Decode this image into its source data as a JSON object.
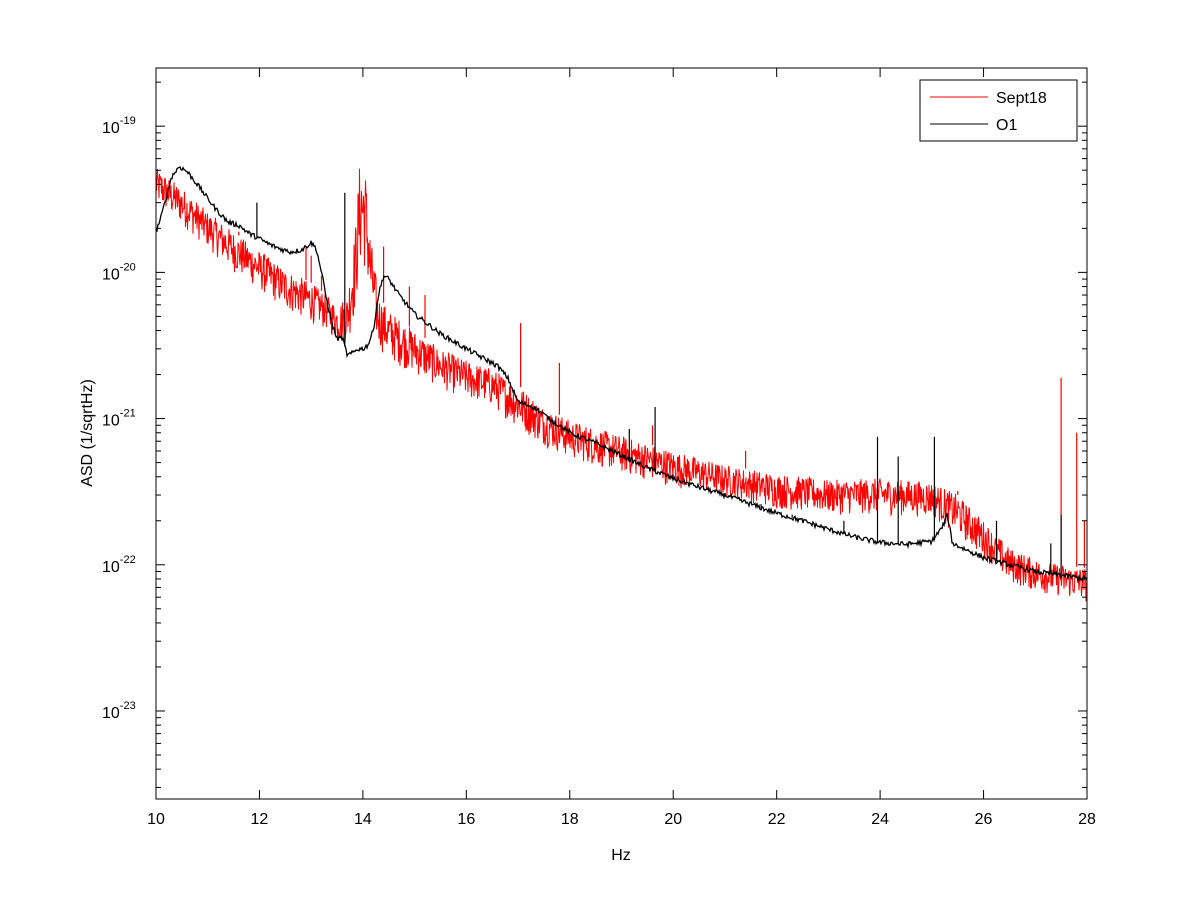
{
  "chart_data": {
    "type": "line",
    "title": "",
    "xlabel": "Hz",
    "ylabel": "ASD (1/sqrtHz)",
    "xlim": [
      10,
      28
    ],
    "ylim": [
      2.5e-24,
      2.5e-19
    ],
    "yscale": "log",
    "grid": false,
    "legend_position": "top-right",
    "x_ticks": [
      10,
      12,
      14,
      16,
      18,
      20,
      22,
      24,
      26,
      28
    ],
    "x_tick_labels": [
      "10",
      "12",
      "14",
      "16",
      "18",
      "20",
      "22",
      "24",
      "26",
      "28"
    ],
    "y_ticks": [
      1e-23,
      1e-22,
      1e-21,
      1e-20,
      1e-19
    ],
    "y_tick_exponents": [
      "-23",
      "-22",
      "-21",
      "-20",
      "-19"
    ],
    "y_tick_base": "10",
    "series": [
      {
        "name": "Sept18",
        "color": "#ff0000",
        "noise_band": true,
        "lower": [
          [
            10,
            2.9e-20
          ],
          [
            10.5,
            2.1e-20
          ],
          [
            11,
            1.45e-20
          ],
          [
            11.5,
            1e-20
          ],
          [
            12,
            7.5e-21
          ],
          [
            12.5,
            5.5e-21
          ],
          [
            13,
            4.5e-21
          ],
          [
            13.3,
            4e-21
          ],
          [
            13.5,
            3.3e-21
          ],
          [
            13.7,
            3.2e-21
          ],
          [
            13.85,
            5e-21
          ],
          [
            13.95,
            1e-20
          ],
          [
            14.05,
            1e-20
          ],
          [
            14.15,
            5e-21
          ],
          [
            14.3,
            3e-21
          ],
          [
            14.5,
            2.5e-21
          ],
          [
            15,
            2e-21
          ],
          [
            15.5,
            1.6e-21
          ],
          [
            16,
            1.35e-21
          ],
          [
            16.5,
            1.2e-21
          ],
          [
            17,
            8.5e-22
          ],
          [
            17.5,
            6.5e-22
          ],
          [
            18,
            5.3e-22
          ],
          [
            19,
            4.2e-22
          ],
          [
            20,
            3.4e-22
          ],
          [
            21,
            2.9e-22
          ],
          [
            22,
            2.4e-22
          ],
          [
            23,
            2.2e-22
          ],
          [
            24,
            2.2e-22
          ],
          [
            25,
            2.1e-22
          ],
          [
            25.5,
            1.6e-22
          ],
          [
            26,
            1.1e-22
          ],
          [
            26.5,
            7.5e-23
          ],
          [
            27,
            6.5e-23
          ],
          [
            27.5,
            6e-23
          ],
          [
            28,
            5.5e-23
          ]
        ],
        "upper": [
          [
            10,
            5.2e-20
          ],
          [
            10.5,
            3.8e-20
          ],
          [
            11,
            2.6e-20
          ],
          [
            11.5,
            1.9e-20
          ],
          [
            12,
            1.4e-20
          ],
          [
            12.5,
            1.05e-20
          ],
          [
            13,
            8.5e-21
          ],
          [
            13.3,
            7e-21
          ],
          [
            13.5,
            6e-21
          ],
          [
            13.7,
            7e-21
          ],
          [
            13.85,
            2e-20
          ],
          [
            13.95,
            6.5e-20
          ],
          [
            14.05,
            5e-20
          ],
          [
            14.15,
            1.8e-20
          ],
          [
            14.3,
            7e-21
          ],
          [
            14.5,
            5.5e-21
          ],
          [
            15,
            4e-21
          ],
          [
            15.5,
            3e-21
          ],
          [
            16,
            2.5e-21
          ],
          [
            16.5,
            2.2e-21
          ],
          [
            17,
            1.7e-21
          ],
          [
            17.5,
            1.2e-21
          ],
          [
            18,
            9.8e-22
          ],
          [
            19,
            7.6e-22
          ],
          [
            20,
            6e-22
          ],
          [
            21,
            4.8e-22
          ],
          [
            22,
            4.2e-22
          ],
          [
            23,
            3.8e-22
          ],
          [
            24,
            3.9e-22
          ],
          [
            25,
            3.7e-22
          ],
          [
            25.5,
            3e-22
          ],
          [
            26,
            2e-22
          ],
          [
            26.5,
            1.3e-22
          ],
          [
            27,
            1.1e-22
          ],
          [
            27.5,
            1e-22
          ],
          [
            28,
            9.5e-23
          ]
        ],
        "spikes": [
          [
            11.6,
            1.9e-20
          ],
          [
            12.0,
            1.4e-20
          ],
          [
            12.1,
            1.2e-20
          ],
          [
            12.9,
            1.5e-20
          ],
          [
            13.0,
            1.3e-20
          ],
          [
            13.2,
            9.5e-21
          ],
          [
            14.4,
            1.5e-20
          ],
          [
            14.9,
            8e-21
          ],
          [
            15.2,
            7e-21
          ],
          [
            17.05,
            4.5e-21
          ],
          [
            17.8,
            2.4e-21
          ],
          [
            19.6,
            9e-22
          ],
          [
            21.4,
            6e-22
          ],
          [
            25.5,
            3.2e-22
          ],
          [
            27.5,
            1.9e-21
          ],
          [
            27.8,
            8e-22
          ],
          [
            27.95,
            2e-22
          ]
        ]
      },
      {
        "name": "O1",
        "color": "#000000",
        "points": [
          [
            10,
            1.9e-20
          ],
          [
            10.1,
            2.4e-20
          ],
          [
            10.2,
            3.3e-20
          ],
          [
            10.3,
            4.5e-20
          ],
          [
            10.45,
            5.3e-20
          ],
          [
            10.6,
            4.9e-20
          ],
          [
            10.8,
            4e-20
          ],
          [
            11,
            3.2e-20
          ],
          [
            11.2,
            2.6e-20
          ],
          [
            11.4,
            2.2e-20
          ],
          [
            11.6,
            2.1e-20
          ],
          [
            11.8,
            1.85e-20
          ],
          [
            12,
            1.7e-20
          ],
          [
            12.2,
            1.55e-20
          ],
          [
            12.4,
            1.45e-20
          ],
          [
            12.6,
            1.38e-20
          ],
          [
            12.8,
            1.42e-20
          ],
          [
            12.9,
            1.5e-20
          ],
          [
            13.0,
            1.6e-20
          ],
          [
            13.1,
            1.45e-20
          ],
          [
            13.2,
            1e-20
          ],
          [
            13.3,
            6.5e-21
          ],
          [
            13.4,
            4.5e-21
          ],
          [
            13.5,
            3.5e-21
          ],
          [
            13.6,
            3.6e-21
          ],
          [
            13.7,
            2.7e-21
          ],
          [
            13.8,
            2.8e-21
          ],
          [
            13.9,
            3e-21
          ],
          [
            14.0,
            3e-21
          ],
          [
            14.1,
            3.2e-21
          ],
          [
            14.2,
            4e-21
          ],
          [
            14.3,
            7e-21
          ],
          [
            14.4,
            9.5e-21
          ],
          [
            14.5,
            9e-21
          ],
          [
            14.7,
            7e-21
          ],
          [
            15,
            5.2e-21
          ],
          [
            15.5,
            3.8e-21
          ],
          [
            16,
            3e-21
          ],
          [
            16.5,
            2.4e-21
          ],
          [
            16.6,
            2.3e-21
          ],
          [
            16.8,
            1.9e-21
          ],
          [
            17.0,
            1.3e-21
          ],
          [
            17.3,
            1.2e-21
          ],
          [
            17.6,
            1e-21
          ],
          [
            18,
            8e-22
          ],
          [
            18.5,
            6.8e-22
          ],
          [
            19,
            5.6e-22
          ],
          [
            19.5,
            4.6e-22
          ],
          [
            20,
            3.9e-22
          ],
          [
            20.5,
            3.4e-22
          ],
          [
            21,
            3e-22
          ],
          [
            21.5,
            2.6e-22
          ],
          [
            22,
            2.25e-22
          ],
          [
            22.5,
            2e-22
          ],
          [
            23,
            1.75e-22
          ],
          [
            23.5,
            1.55e-22
          ],
          [
            24,
            1.42e-22
          ],
          [
            24.5,
            1.38e-22
          ],
          [
            25,
            1.45e-22
          ],
          [
            25.2,
            1.8e-22
          ],
          [
            25.3,
            2.2e-22
          ],
          [
            25.4,
            1.4e-22
          ],
          [
            25.7,
            1.25e-22
          ],
          [
            26,
            1.12e-22
          ],
          [
            26.5,
            1e-22
          ],
          [
            27,
            9e-23
          ],
          [
            27.5,
            8.5e-23
          ],
          [
            28,
            8e-23
          ]
        ],
        "spikes": [
          [
            11.95,
            3e-20
          ],
          [
            13.65,
            3.5e-20
          ],
          [
            19.15,
            8.5e-22
          ],
          [
            19.65,
            1.2e-21
          ],
          [
            21.7,
            2.6e-22
          ],
          [
            22.3,
            2.2e-22
          ],
          [
            23.3,
            2e-22
          ],
          [
            23.95,
            7.5e-22
          ],
          [
            24.35,
            5.5e-22
          ],
          [
            25.05,
            7.5e-22
          ],
          [
            26.25,
            2e-22
          ],
          [
            27.3,
            1.4e-22
          ],
          [
            27.5,
            2.2e-22
          ]
        ]
      }
    ]
  }
}
